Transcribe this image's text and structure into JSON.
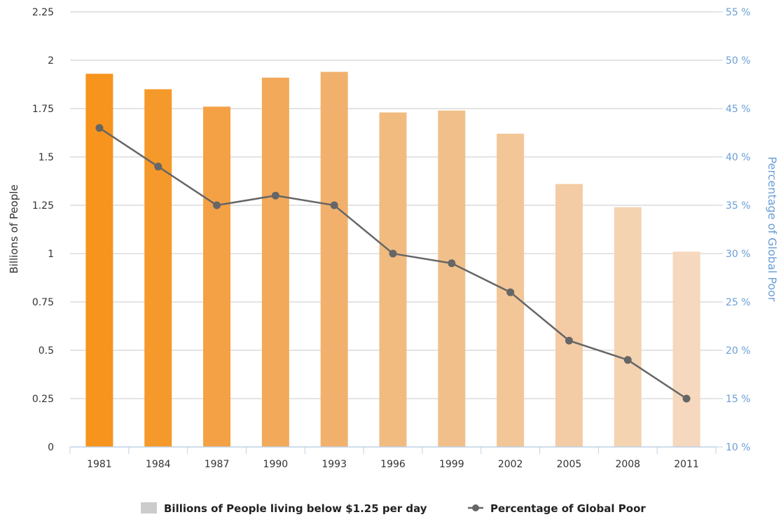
{
  "chart_data": {
    "type": "bar",
    "categories": [
      "1981",
      "1984",
      "1987",
      "1990",
      "1993",
      "1996",
      "1999",
      "2002",
      "2005",
      "2008",
      "2011"
    ],
    "series": [
      {
        "name": "Billions of People living below $1.25 per day",
        "type": "bar",
        "axis": "left",
        "values": [
          1.93,
          1.85,
          1.76,
          1.91,
          1.94,
          1.73,
          1.74,
          1.62,
          1.36,
          1.24,
          1.01
        ],
        "colors": [
          "#f7941d",
          "#f5992a",
          "#f4a145",
          "#f2a95a",
          "#f1b16d",
          "#f1bb80",
          "#f1c08a",
          "#f2c697",
          "#f3cca5",
          "#f4d3b1",
          "#f5d8bd"
        ]
      },
      {
        "name": "Percentage of Global Poor",
        "type": "line",
        "axis": "right",
        "values": [
          43,
          39,
          35,
          36,
          35,
          30,
          29,
          26,
          21,
          19,
          15
        ],
        "color": "#666666"
      }
    ],
    "ylabel": "Billions of People",
    "y2label": "Percentage of Global Poor",
    "ylim": [
      0,
      2.25
    ],
    "y2lim": [
      10,
      55
    ],
    "yticks": [
      "0",
      "0.25",
      "0.5",
      "0.75",
      "1",
      "1.25",
      "1.5",
      "1.75",
      "2",
      "2.25"
    ],
    "y2ticks": [
      "10 %",
      "15 %",
      "20 %",
      "25 %",
      "30 %",
      "35 %",
      "40 %",
      "45 %",
      "50 %",
      "55 %"
    ],
    "grid": true,
    "legend_position": "bottom",
    "legend_bar_swatch_color": "#cccccc",
    "left_axis_color": "#333333",
    "right_axis_color": "#6a9fd6"
  }
}
